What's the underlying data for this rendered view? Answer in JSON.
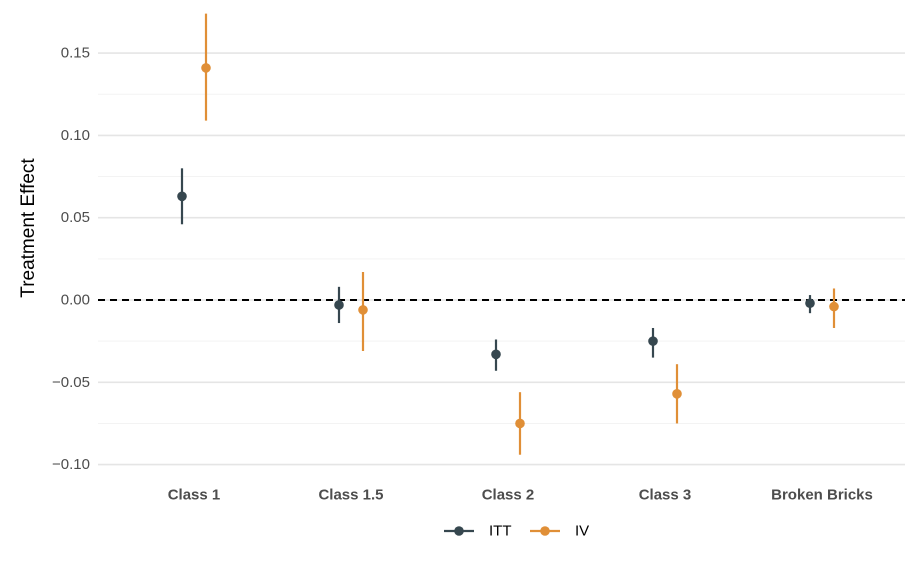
{
  "chart_data": {
    "type": "scatter",
    "subtype": "point-range",
    "title": "",
    "xlabel": "",
    "ylabel": "Treatment Effect",
    "categories": [
      "Class 1",
      "Class 1.5",
      "Class 2",
      "Class 3",
      "Broken Bricks"
    ],
    "ylim": [
      -0.11,
      0.18
    ],
    "yticks": [
      0.15,
      0.1,
      0.05,
      0.0,
      -0.05,
      -0.1
    ],
    "ytick_labels": [
      "0.15",
      "0.10",
      "0.05",
      "0.00",
      "−0.05",
      "−0.10"
    ],
    "reference_line": {
      "y": 0.0,
      "style": "dashed",
      "color": "#000000"
    },
    "grid": true,
    "legend_position": "bottom",
    "series": [
      {
        "name": "ITT",
        "color": "#36474f",
        "values": [
          0.063,
          -0.003,
          -0.033,
          -0.025,
          -0.002
        ],
        "lower": [
          0.046,
          -0.014,
          -0.043,
          -0.035,
          -0.008
        ],
        "upper": [
          0.08,
          0.008,
          -0.024,
          -0.017,
          0.003
        ]
      },
      {
        "name": "IV",
        "color": "#e08f37",
        "values": [
          0.141,
          -0.006,
          -0.075,
          -0.057,
          -0.004
        ],
        "lower": [
          0.109,
          -0.031,
          -0.094,
          -0.075,
          -0.017
        ],
        "upper": [
          0.174,
          0.017,
          -0.056,
          -0.039,
          0.007
        ]
      }
    ]
  }
}
